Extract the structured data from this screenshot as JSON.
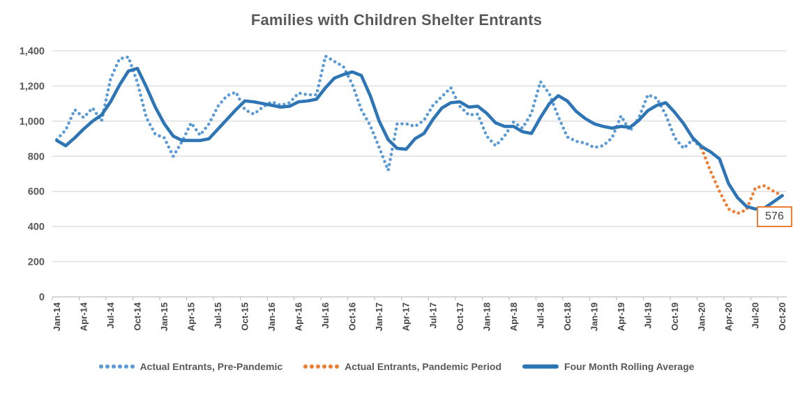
{
  "title": "Families with Children Shelter Entrants",
  "end_label": {
    "value": "576"
  },
  "colors": {
    "pre_pandemic": "#5B9BD5",
    "pandemic": "#ED7D31",
    "rolling": "#2E75B6",
    "gridline": "#D9D9D9",
    "axis": "#BFBFBF",
    "axis_text": "#595959",
    "x_text": "#454545",
    "label_text": "#404040"
  },
  "legend": [
    {
      "label": "Actual Entrants, Pre-Pandemic",
      "marker": "dotted",
      "color_key": "pre_pandemic"
    },
    {
      "label": "Actual Entrants, Pandemic Period",
      "marker": "dotted",
      "color_key": "pandemic"
    },
    {
      "label": "Four Month Rolling Average",
      "marker": "solid",
      "color_key": "rolling"
    }
  ],
  "chart_data": {
    "type": "line",
    "title": "Families with Children Shelter Entrants",
    "ylim": [
      0,
      1400
    ],
    "ytick_step": 200,
    "y_tick_labels": [
      "0",
      "200",
      "400",
      "600",
      "800",
      "1,000",
      "1,200",
      "1,400"
    ],
    "grid": true,
    "legend_position": "bottom",
    "x_label_every": 3,
    "x": [
      "Jan-14",
      "Feb-14",
      "Mar-14",
      "Apr-14",
      "May-14",
      "Jun-14",
      "Jul-14",
      "Aug-14",
      "Sep-14",
      "Oct-14",
      "Nov-14",
      "Dec-14",
      "Jan-15",
      "Feb-15",
      "Mar-15",
      "Apr-15",
      "May-15",
      "Jun-15",
      "Jul-15",
      "Aug-15",
      "Sep-15",
      "Oct-15",
      "Nov-15",
      "Dec-15",
      "Jan-16",
      "Feb-16",
      "Mar-16",
      "Apr-16",
      "May-16",
      "Jun-16",
      "Jul-16",
      "Aug-16",
      "Sep-16",
      "Oct-16",
      "Nov-16",
      "Dec-16",
      "Jan-17",
      "Feb-17",
      "Mar-17",
      "Apr-17",
      "May-17",
      "Jun-17",
      "Jul-17",
      "Aug-17",
      "Sep-17",
      "Oct-17",
      "Nov-17",
      "Dec-17",
      "Jan-18",
      "Feb-18",
      "Mar-18",
      "Apr-18",
      "May-18",
      "Jun-18",
      "Jul-18",
      "Aug-18",
      "Sep-18",
      "Oct-18",
      "Nov-18",
      "Dec-18",
      "Jan-19",
      "Feb-19",
      "Mar-19",
      "Apr-19",
      "May-19",
      "Jun-19",
      "Jul-19",
      "Aug-19",
      "Sep-19",
      "Oct-19",
      "Nov-19",
      "Dec-19",
      "Jan-20",
      "Feb-20",
      "Mar-20",
      "Apr-20",
      "May-20",
      "Jun-20",
      "Jul-20",
      "Aug-20",
      "Sep-20",
      "Oct-20"
    ],
    "series": [
      {
        "name": "Actual Entrants, Pre-Pandemic",
        "style": "dotted",
        "color_key": "pre_pandemic",
        "start_index": 0,
        "values": [
          895,
          950,
          1065,
          1020,
          1075,
          1000,
          1240,
          1355,
          1365,
          1220,
          1020,
          925,
          905,
          800,
          885,
          990,
          920,
          985,
          1085,
          1145,
          1165,
          1065,
          1040,
          1080,
          1110,
          1090,
          1105,
          1160,
          1150,
          1150,
          1370,
          1340,
          1310,
          1210,
          1065,
          975,
          850,
          720,
          985,
          985,
          970,
          1005,
          1090,
          1140,
          1190,
          1085,
          1035,
          1040,
          915,
          860,
          915,
          995,
          960,
          1045,
          1225,
          1155,
          1025,
          910,
          885,
          875,
          850,
          860,
          905,
          1030,
          945,
          1020,
          1150,
          1130,
          1035,
          905,
          845,
          895,
          845
        ]
      },
      {
        "name": "Actual Entrants, Pandemic Period",
        "style": "dotted",
        "color_key": "pandemic",
        "start_index": 72,
        "values": [
          845,
          715,
          600,
          500,
          475,
          495,
          620,
          632,
          602,
          576
        ]
      },
      {
        "name": "Four Month Rolling Average",
        "style": "solid",
        "color_key": "rolling",
        "start_index": 0,
        "values": [
          890,
          860,
          905,
          955,
          1000,
          1035,
          1110,
          1205,
          1285,
          1300,
          1195,
          1080,
          985,
          915,
          890,
          890,
          890,
          900,
          955,
          1010,
          1065,
          1115,
          1110,
          1100,
          1090,
          1080,
          1085,
          1110,
          1115,
          1125,
          1190,
          1245,
          1265,
          1280,
          1260,
          1145,
          1000,
          895,
          845,
          840,
          900,
          930,
          1010,
          1075,
          1105,
          1110,
          1080,
          1085,
          1045,
          990,
          970,
          970,
          940,
          930,
          1020,
          1100,
          1145,
          1115,
          1055,
          1015,
          985,
          970,
          960,
          970,
          965,
          1005,
          1060,
          1090,
          1105,
          1050,
          985,
          905,
          855,
          825,
          785,
          645,
          565,
          515,
          500,
          505,
          540,
          576
        ]
      }
    ],
    "annotation": {
      "x": "Oct-20",
      "series": "Four Month Rolling Average",
      "text": "576"
    }
  }
}
